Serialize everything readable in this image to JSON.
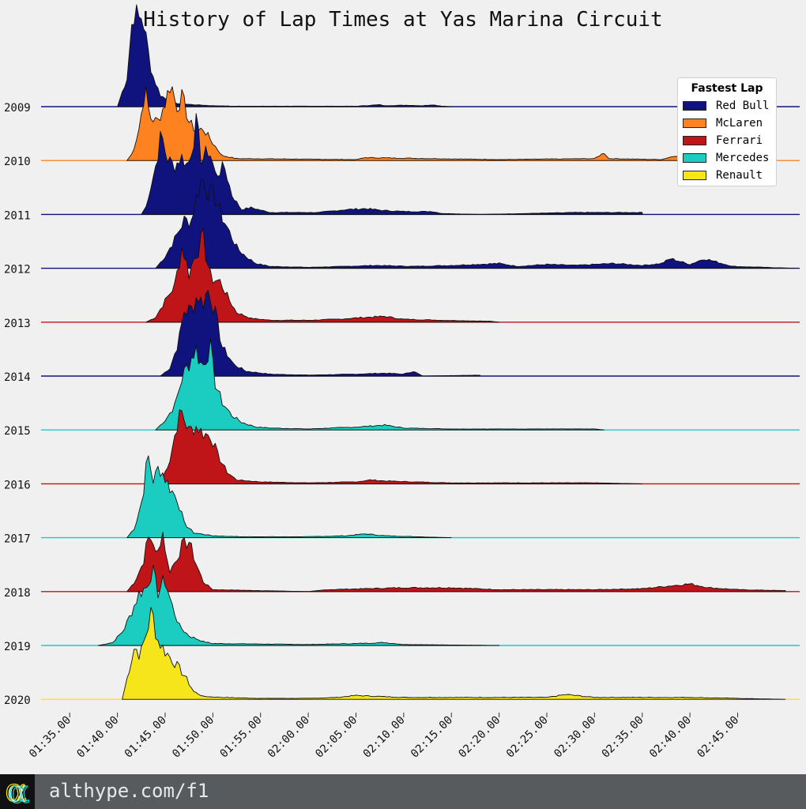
{
  "chart_data": {
    "type": "area",
    "title": "History of Lap Times at Yas Marina Circuit",
    "xlabel": "",
    "ylabel": "",
    "x_range_seconds": [
      92.0,
      171.5
    ],
    "x_tick_labels": [
      "01:35.00",
      "01:40.00",
      "01:45.00",
      "01:50.00",
      "01:55.00",
      "02:00.00",
      "02:05.00",
      "02:10.00",
      "02:15.00",
      "02:20.00",
      "02:25.00",
      "02:30.00",
      "02:35.00",
      "02:40.00",
      "02:45.00"
    ],
    "x_tick_seconds": [
      95,
      100,
      105,
      110,
      115,
      120,
      125,
      130,
      135,
      140,
      145,
      150,
      155,
      160,
      165
    ],
    "legend": {
      "title": "Fastest Lap",
      "placement": "top-right",
      "entries": [
        {
          "name": "Red Bull",
          "color": "#10127d"
        },
        {
          "name": "McLaren",
          "color": "#fe8320"
        },
        {
          "name": "Ferrari",
          "color": "#c01518"
        },
        {
          "name": "Mercedes",
          "color": "#1bcdc0"
        },
        {
          "name": "Renault",
          "color": "#f7e51c"
        }
      ]
    },
    "series": [
      {
        "name": "2009",
        "team": "Red Bull",
        "color": "#10127d",
        "peaks": [
          [
            100,
            0
          ],
          [
            101,
            0.3
          ],
          [
            101.5,
            0.85
          ],
          [
            101.8,
            1.0
          ],
          [
            102.2,
            0.9
          ],
          [
            102.6,
            0.95
          ],
          [
            103.1,
            0.65
          ],
          [
            103.6,
            0.35
          ],
          [
            104.5,
            0.12
          ],
          [
            105.5,
            0.05
          ],
          [
            106.5,
            0.03
          ],
          [
            108,
            0.02
          ],
          [
            110,
            0.01
          ],
          [
            112,
            0.005
          ],
          [
            125,
            0.005
          ],
          [
            127.5,
            0.02
          ],
          [
            128,
            0.01
          ],
          [
            130,
            0.015
          ],
          [
            132,
            0.01
          ],
          [
            133,
            0.02
          ],
          [
            134,
            0.005
          ],
          [
            135,
            0
          ]
        ],
        "tail": [
          [
            96,
            0
          ],
          [
            99.5,
            0
          ]
        ]
      },
      {
        "name": "2010",
        "team": "McLaren",
        "color": "#fe8320",
        "peaks": [
          [
            101,
            0
          ],
          [
            101.6,
            0.08
          ],
          [
            102.3,
            0.35
          ],
          [
            102.9,
            0.75
          ],
          [
            103.4,
            0.45
          ],
          [
            104.2,
            0.4
          ],
          [
            105,
            0.6
          ],
          [
            105.6,
            0.82
          ],
          [
            106.2,
            0.55
          ],
          [
            106.8,
            0.66
          ],
          [
            107.5,
            0.4
          ],
          [
            108.3,
            0.3
          ],
          [
            109,
            0.33
          ],
          [
            110,
            0.18
          ],
          [
            111,
            0.05
          ],
          [
            112.5,
            0.02
          ],
          [
            125,
            0.01
          ],
          [
            126,
            0.03
          ],
          [
            140,
            0.01
          ],
          [
            150,
            0.02
          ],
          [
            151,
            0.08
          ],
          [
            151.5,
            0.02
          ],
          [
            157,
            0.01
          ],
          [
            158.5,
            0.05
          ],
          [
            161,
            0.03
          ],
          [
            163,
            0.04
          ],
          [
            165,
            0.01
          ]
        ]
      },
      {
        "name": "2011",
        "team": "Red Bull",
        "color": "#10127d",
        "peaks": [
          [
            102.5,
            0
          ],
          [
            103,
            0.08
          ],
          [
            104,
            0.5
          ],
          [
            104.6,
            0.83
          ],
          [
            105.2,
            0.58
          ],
          [
            106,
            0.5
          ],
          [
            106.7,
            0.6
          ],
          [
            107.4,
            0.5
          ],
          [
            108.3,
            0.95
          ],
          [
            108.8,
            0.55
          ],
          [
            109.6,
            0.68
          ],
          [
            110.3,
            0.4
          ],
          [
            111.2,
            0.5
          ],
          [
            112,
            0.2
          ],
          [
            113,
            0.05
          ],
          [
            114,
            0.07
          ],
          [
            116,
            0.02
          ],
          [
            121,
            0.02
          ],
          [
            124,
            0.05
          ],
          [
            126,
            0.06
          ],
          [
            128,
            0.04
          ],
          [
            130,
            0.03
          ],
          [
            133,
            0.03
          ],
          [
            134,
            0.01
          ],
          [
            138,
            0
          ],
          [
            148,
            0.02
          ],
          [
            155,
            0.02
          ]
        ]
      },
      {
        "name": "2012",
        "team": "Red Bull",
        "color": "#10127d",
        "peaks": [
          [
            104,
            0
          ],
          [
            105,
            0.12
          ],
          [
            106,
            0.3
          ],
          [
            107,
            0.5
          ],
          [
            107.7,
            0.48
          ],
          [
            108.3,
            0.75
          ],
          [
            108.9,
            0.95
          ],
          [
            109.6,
            0.78
          ],
          [
            110.2,
            0.75
          ],
          [
            110.9,
            0.55
          ],
          [
            111.7,
            0.38
          ],
          [
            112.6,
            0.2
          ],
          [
            113.5,
            0.12
          ],
          [
            114.5,
            0.05
          ],
          [
            116,
            0.02
          ],
          [
            120,
            0.01
          ],
          [
            124,
            0.02
          ],
          [
            127,
            0.03
          ],
          [
            131,
            0.02
          ],
          [
            135,
            0.03
          ],
          [
            140,
            0.05
          ],
          [
            142,
            0.02
          ],
          [
            145,
            0.04
          ],
          [
            148,
            0.03
          ],
          [
            152,
            0.05
          ],
          [
            155,
            0.03
          ],
          [
            157,
            0.05
          ],
          [
            158,
            0.1
          ],
          [
            160,
            0.04
          ],
          [
            161.5,
            0.1
          ],
          [
            163,
            0.06
          ],
          [
            164.5,
            0.02
          ],
          [
            171,
            0
          ]
        ]
      },
      {
        "name": "2013",
        "team": "Ferrari",
        "color": "#c01518",
        "peaks": [
          [
            103,
            0
          ],
          [
            104,
            0.05
          ],
          [
            105,
            0.22
          ],
          [
            106,
            0.38
          ],
          [
            106.8,
            0.8
          ],
          [
            107.5,
            0.5
          ],
          [
            108.3,
            0.75
          ],
          [
            109,
            0.85
          ],
          [
            109.8,
            0.45
          ],
          [
            110.8,
            0.42
          ],
          [
            111.6,
            0.25
          ],
          [
            112.5,
            0.1
          ],
          [
            114,
            0.04
          ],
          [
            116,
            0.02
          ],
          [
            120,
            0.02
          ],
          [
            123,
            0.03
          ],
          [
            126,
            0.05
          ],
          [
            128,
            0.06
          ],
          [
            130,
            0.03
          ],
          [
            134,
            0.02
          ],
          [
            139,
            0.01
          ],
          [
            140,
            0
          ]
        ]
      },
      {
        "name": "2014",
        "team": "Red Bull",
        "color": "#10127d",
        "peaks": [
          [
            104.5,
            0
          ],
          [
            105.5,
            0.08
          ],
          [
            106.4,
            0.35
          ],
          [
            107,
            0.68
          ],
          [
            107.7,
            0.68
          ],
          [
            108.4,
            0.85
          ],
          [
            108.9,
            0.75
          ],
          [
            109.6,
            0.92
          ],
          [
            110.3,
            0.62
          ],
          [
            111,
            0.3
          ],
          [
            112.2,
            0.12
          ],
          [
            113.5,
            0.05
          ],
          [
            116,
            0.02
          ],
          [
            120,
            0.01
          ],
          [
            125,
            0.02
          ],
          [
            128,
            0.03
          ],
          [
            130,
            0.02
          ],
          [
            131,
            0.05
          ],
          [
            132,
            0
          ],
          [
            138,
            0.01
          ]
        ]
      },
      {
        "name": "2015",
        "team": "Mercedes",
        "color": "#1bcdc0",
        "peaks": [
          [
            104,
            0
          ],
          [
            105,
            0.1
          ],
          [
            106,
            0.25
          ],
          [
            106.8,
            0.55
          ],
          [
            107.6,
            0.72
          ],
          [
            108.2,
            0.85
          ],
          [
            108.9,
            0.65
          ],
          [
            109.7,
            0.88
          ],
          [
            110.2,
            0.5
          ],
          [
            111,
            0.28
          ],
          [
            112,
            0.15
          ],
          [
            113,
            0.08
          ],
          [
            114.5,
            0.03
          ],
          [
            116,
            0.02
          ],
          [
            120,
            0.01
          ],
          [
            125,
            0.03
          ],
          [
            128,
            0.05
          ],
          [
            130,
            0.02
          ],
          [
            135,
            0.01
          ],
          [
            150,
            0.01
          ],
          [
            151,
            0
          ]
        ]
      },
      {
        "name": "2016",
        "team": "Ferrari",
        "color": "#c01518",
        "peaks": [
          [
            104.5,
            0
          ],
          [
            105.5,
            0.25
          ],
          [
            106.2,
            0.6
          ],
          [
            106.7,
            0.75
          ],
          [
            107.5,
            0.55
          ],
          [
            108.3,
            0.6
          ],
          [
            109,
            0.52
          ],
          [
            109.8,
            0.5
          ],
          [
            110.5,
            0.3
          ],
          [
            111.5,
            0.12
          ],
          [
            112.5,
            0.04
          ],
          [
            115,
            0.02
          ],
          [
            120,
            0.01
          ],
          [
            125,
            0.02
          ],
          [
            126.5,
            0.04
          ],
          [
            128,
            0.03
          ],
          [
            131,
            0.02
          ],
          [
            135,
            0.01
          ],
          [
            150,
            0.01
          ],
          [
            155,
            0
          ]
        ]
      },
      {
        "name": "2017",
        "team": "Mercedes",
        "color": "#1bcdc0",
        "peaks": [
          [
            101,
            0
          ],
          [
            101.8,
            0.1
          ],
          [
            102.6,
            0.4
          ],
          [
            103.2,
            0.85
          ],
          [
            103.8,
            0.58
          ],
          [
            104.4,
            0.75
          ],
          [
            105,
            0.62
          ],
          [
            105.6,
            0.5
          ],
          [
            106.3,
            0.4
          ],
          [
            107,
            0.15
          ],
          [
            108,
            0.05
          ],
          [
            110,
            0.02
          ],
          [
            113,
            0.01
          ],
          [
            120,
            0.01
          ],
          [
            124,
            0.02
          ],
          [
            126,
            0.04
          ],
          [
            128,
            0.02
          ],
          [
            135,
            0
          ]
        ]
      },
      {
        "name": "2018",
        "team": "Ferrari",
        "color": "#c01518",
        "peaks": [
          [
            101,
            0
          ],
          [
            101.8,
            0.1
          ],
          [
            102.7,
            0.3
          ],
          [
            103.2,
            0.55
          ],
          [
            103.7,
            0.55
          ],
          [
            104.1,
            0.33
          ],
          [
            104.7,
            0.65
          ],
          [
            105.4,
            0.2
          ],
          [
            106,
            0.3
          ],
          [
            106.8,
            0.48
          ],
          [
            107.5,
            0.52
          ],
          [
            108.2,
            0.3
          ],
          [
            109,
            0.1
          ],
          [
            110,
            0.02
          ],
          [
            120,
            0
          ],
          [
            122,
            0.02
          ],
          [
            126,
            0.03
          ],
          [
            130,
            0.04
          ],
          [
            135,
            0.04
          ],
          [
            140,
            0.02
          ],
          [
            145,
            0.02
          ],
          [
            150,
            0.02
          ],
          [
            155,
            0.03
          ],
          [
            158,
            0.06
          ],
          [
            160,
            0.08
          ],
          [
            162,
            0.04
          ],
          [
            165,
            0.02
          ],
          [
            170,
            0.01
          ]
        ]
      },
      {
        "name": "2019",
        "team": "Mercedes",
        "color": "#1bcdc0",
        "peaks": [
          [
            98,
            0
          ],
          [
            99.5,
            0.03
          ],
          [
            100.6,
            0.15
          ],
          [
            101.5,
            0.35
          ],
          [
            102.3,
            0.55
          ],
          [
            103,
            0.6
          ],
          [
            103.6,
            0.8
          ],
          [
            104.2,
            0.55
          ],
          [
            105,
            0.68
          ],
          [
            105.6,
            0.45
          ],
          [
            106.5,
            0.2
          ],
          [
            107.5,
            0.1
          ],
          [
            109,
            0.04
          ],
          [
            110,
            0.02
          ],
          [
            120,
            0.01
          ],
          [
            125,
            0.02
          ],
          [
            128,
            0.03
          ],
          [
            130,
            0.01
          ],
          [
            140,
            0
          ]
        ]
      },
      {
        "name": "2020",
        "team": "Renault",
        "color": "#f7e51c",
        "peaks": [
          [
            100.5,
            0
          ],
          [
            101.2,
            0.3
          ],
          [
            101.8,
            0.55
          ],
          [
            102.4,
            0.45
          ],
          [
            103.1,
            0.72
          ],
          [
            103.6,
            0.92
          ],
          [
            104.2,
            0.62
          ],
          [
            105,
            0.5
          ],
          [
            106,
            0.38
          ],
          [
            107,
            0.25
          ],
          [
            108,
            0.08
          ],
          [
            109,
            0.03
          ],
          [
            111,
            0.02
          ],
          [
            115,
            0.01
          ],
          [
            120,
            0.01
          ],
          [
            123,
            0.02
          ],
          [
            125,
            0.04
          ],
          [
            130,
            0.02
          ],
          [
            140,
            0.02
          ],
          [
            145,
            0.02
          ],
          [
            147,
            0.05
          ],
          [
            150,
            0.02
          ],
          [
            160,
            0.02
          ],
          [
            165,
            0.01
          ],
          [
            170,
            0
          ]
        ]
      }
    ]
  },
  "footer": {
    "logo_glyph": "α",
    "url": "althype.com/f1"
  }
}
